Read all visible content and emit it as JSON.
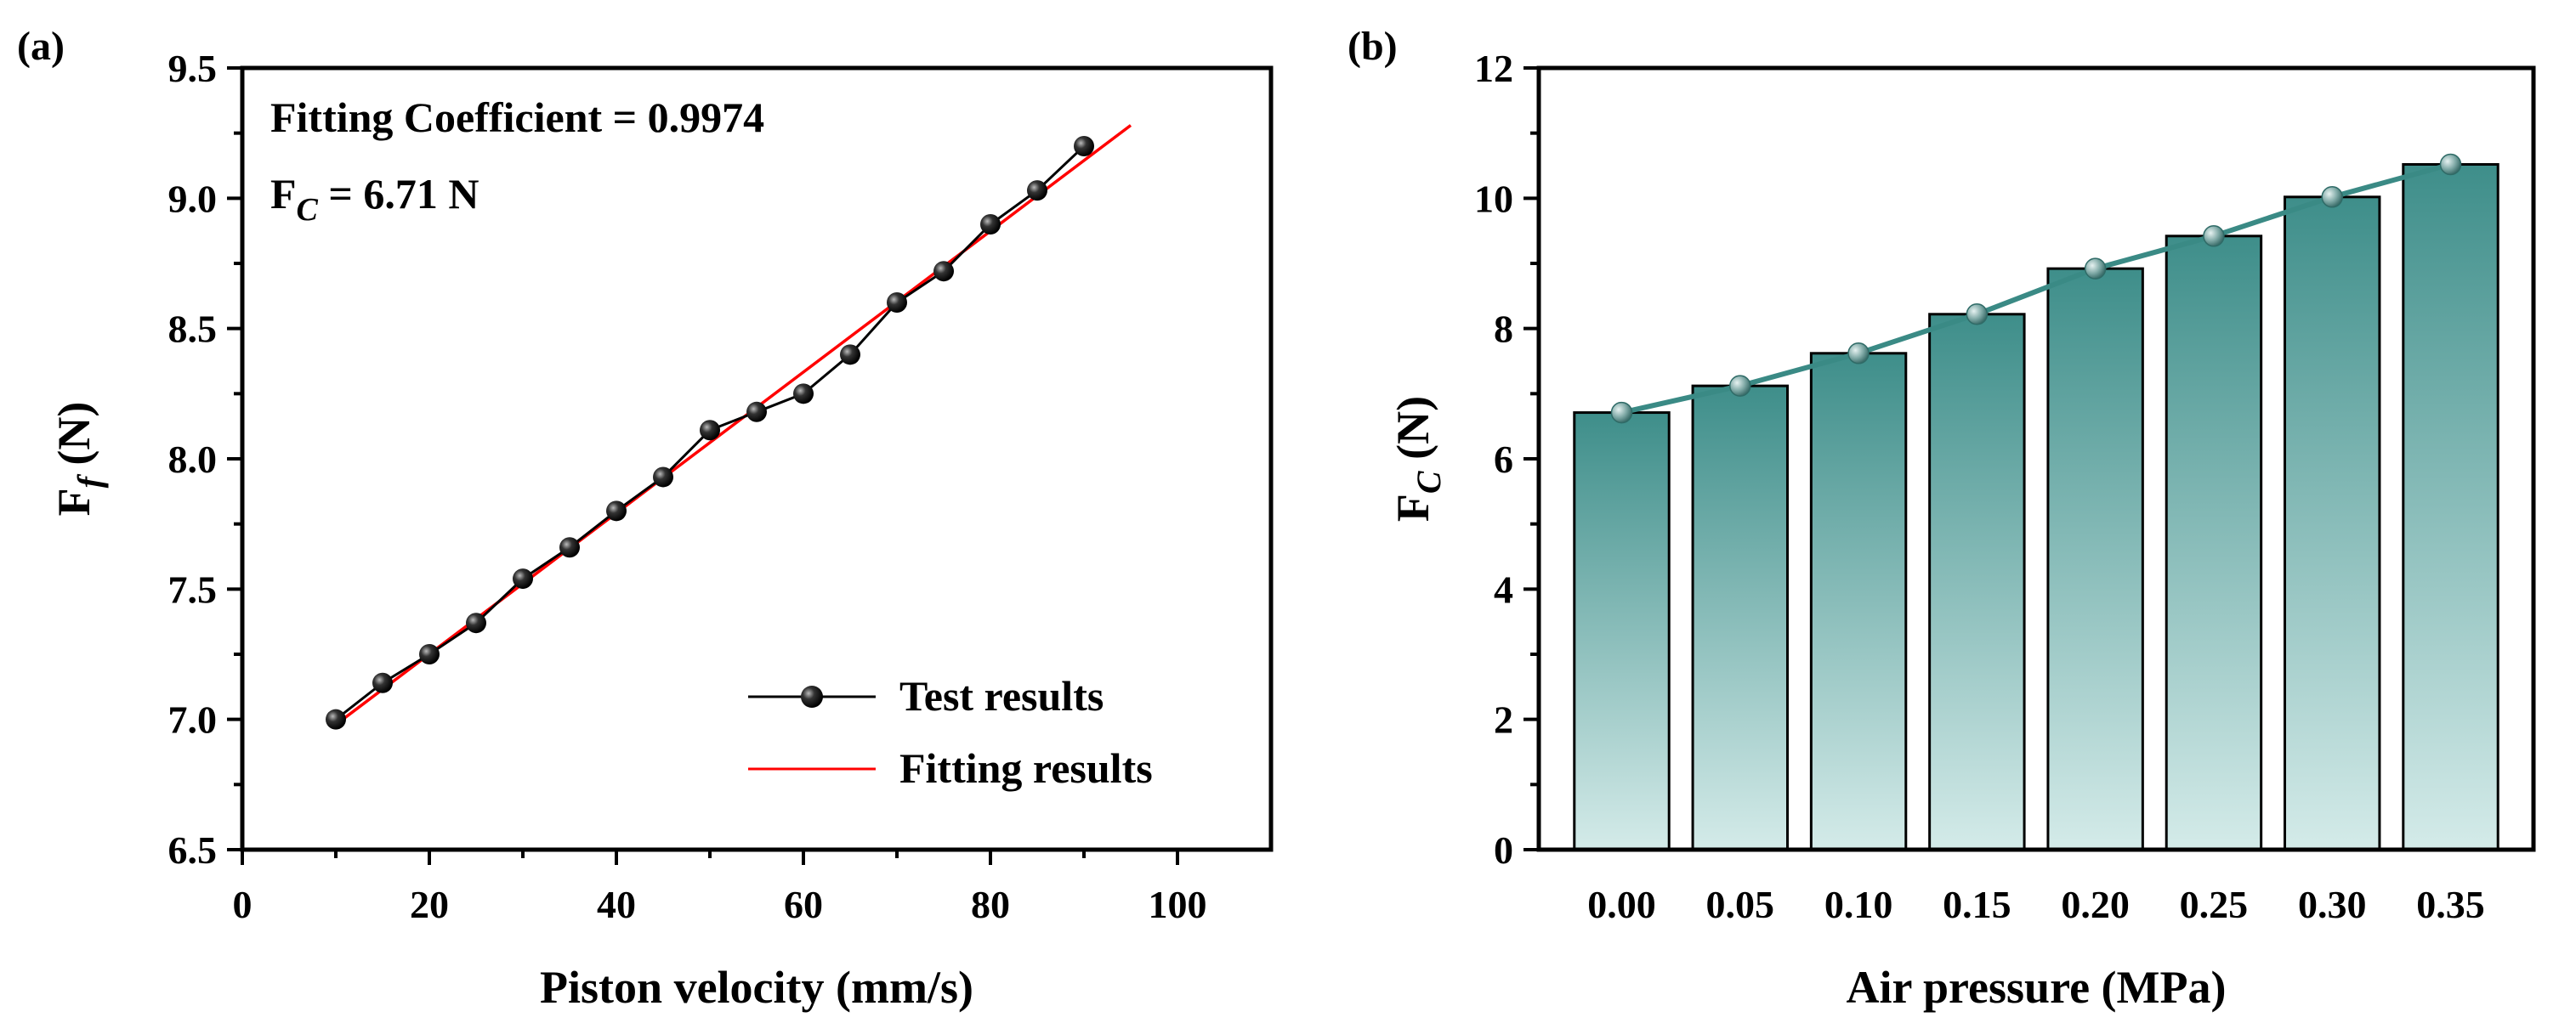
{
  "colors": {
    "test_line": "#000000",
    "fit_line": "#ff0000",
    "bar_top": "#3e8e8a",
    "bar_bottom": "#d4ebe9",
    "trend_line": "#3a8a85",
    "trend_point": "#8fb5b3"
  },
  "chart_data": [
    {
      "panel": "(a)",
      "type": "line",
      "title": "",
      "xlabel": "Piston velocity (mm/s)",
      "ylabel_main": "F",
      "ylabel_sub": "f",
      "ylabel_unit": " (N)",
      "xlim": [
        0,
        110
      ],
      "ylim": [
        6.5,
        9.5
      ],
      "xticks": [
        0,
        20,
        40,
        60,
        80,
        100
      ],
      "yticks": [
        6.5,
        7.0,
        7.5,
        8.0,
        8.5,
        9.0,
        9.5
      ],
      "ytick_labels": [
        "6.5",
        "7.0",
        "7.5",
        "8.0",
        "8.5",
        "9.0",
        "9.5"
      ],
      "annotation_line1": "Fitting Coefficient = 0.9974",
      "annotation_line2_main": "F",
      "annotation_line2_sub": "C",
      "annotation_line2_rest": " = 6.71 N",
      "legend_position": "bottom-right",
      "series": [
        {
          "name": "Test results",
          "style": "line-with-markers",
          "x": [
            10,
            15,
            20,
            25,
            30,
            35,
            40,
            45,
            50,
            55,
            60,
            65,
            70,
            75,
            80,
            85,
            90
          ],
          "y": [
            7.0,
            7.14,
            7.25,
            7.37,
            7.54,
            7.66,
            7.8,
            7.93,
            8.11,
            8.18,
            8.25,
            8.4,
            8.6,
            8.72,
            8.9,
            9.03,
            9.2
          ]
        },
        {
          "name": "Fitting results",
          "style": "line",
          "x": [
            10,
            95
          ],
          "y": [
            6.98,
            9.28
          ]
        }
      ]
    },
    {
      "panel": "(b)",
      "type": "bar",
      "title": "",
      "xlabel": "Air pressure (MPa)",
      "ylabel_main": "F",
      "ylabel_sub": "C",
      "ylabel_unit": " (N)",
      "ylim": [
        0,
        12
      ],
      "yticks": [
        0,
        2,
        4,
        6,
        8,
        10,
        12
      ],
      "categories": [
        "0.00",
        "0.05",
        "0.10",
        "0.15",
        "0.20",
        "0.25",
        "0.30",
        "0.35"
      ],
      "values": [
        6.71,
        7.12,
        7.62,
        8.22,
        8.92,
        9.42,
        10.02,
        10.52
      ]
    }
  ]
}
